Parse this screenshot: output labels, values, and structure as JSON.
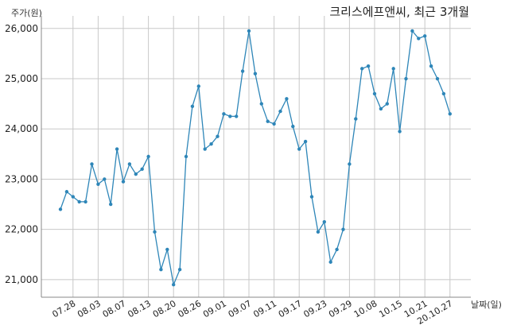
{
  "chart_data": {
    "type": "line",
    "title": "크리스에프앤씨, 최근 3개월",
    "ylabel": "주가(원)",
    "xlabel": "날짜(일)",
    "ylim": [
      20650,
      26250
    ],
    "yticks": [
      21000,
      22000,
      23000,
      24000,
      25000,
      26000
    ],
    "ytick_labels": [
      "21,000",
      "22,000",
      "23,000",
      "24,000",
      "25,000",
      "26,000"
    ],
    "x_ticks": [
      {
        "index": 2,
        "label": "07.28"
      },
      {
        "index": 6,
        "label": "08.03"
      },
      {
        "index": 10,
        "label": "08.07"
      },
      {
        "index": 14,
        "label": "08.13"
      },
      {
        "index": 18,
        "label": "08.20"
      },
      {
        "index": 22,
        "label": "08.26"
      },
      {
        "index": 26,
        "label": "09.01"
      },
      {
        "index": 30,
        "label": "09.07"
      },
      {
        "index": 34,
        "label": "09.11"
      },
      {
        "index": 38,
        "label": "09.17"
      },
      {
        "index": 42,
        "label": "09.23"
      },
      {
        "index": 46,
        "label": "09.29"
      },
      {
        "index": 50,
        "label": "10.08"
      },
      {
        "index": 54,
        "label": "10.15"
      },
      {
        "index": 58,
        "label": "10.21"
      },
      {
        "index": 62,
        "label": "20.10.27"
      }
    ],
    "grid": true,
    "line_color": "#2e86b8",
    "series": [
      {
        "values": [
          22400,
          22750,
          22650,
          22550,
          22550,
          23300,
          22900,
          23000,
          22500,
          23600,
          22950,
          23300,
          23100,
          23200,
          23450,
          21950,
          21200,
          21600,
          20900,
          21200,
          23450,
          24450,
          24850,
          23600,
          23700,
          23850,
          24300,
          24250,
          24250,
          25150,
          25950,
          25100,
          24500,
          24150,
          24100,
          24350,
          24600,
          24050,
          23600,
          23750,
          22650,
          21950,
          22150,
          21350,
          21600,
          22000,
          23300,
          24200,
          25200,
          25250,
          24700,
          24400,
          24500,
          25200,
          23950,
          25000,
          25950,
          25800,
          25850,
          25250,
          25000,
          24700,
          24300
        ]
      }
    ]
  }
}
